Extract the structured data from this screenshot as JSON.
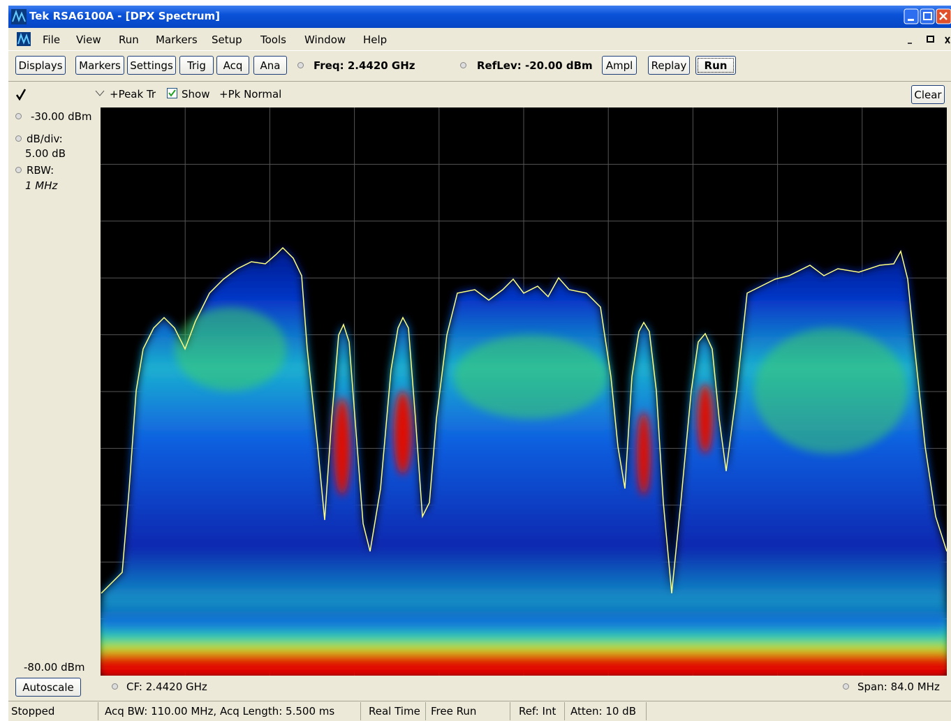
{
  "window": {
    "title": "Tek RSA6100A - [DPX Spectrum]"
  },
  "menu": [
    "File",
    "View",
    "Run",
    "Markers",
    "Setup",
    "Tools",
    "Window",
    "Help"
  ],
  "toolbar": {
    "buttons_left": [
      "Displays",
      "Markers",
      "Settings",
      "Trig",
      "Acq",
      "Ana"
    ],
    "freq": "Freq: 2.4420 GHz",
    "reflev": "RefLev: -20.00 dBm",
    "buttons_right": [
      "Ampl",
      "Replay",
      "Run"
    ]
  },
  "trace_bar": {
    "trace": "+Peak Tr",
    "show": "Show",
    "detection": "+Pk Normal",
    "clear": "Clear"
  },
  "side_panel": {
    "ref_level": "-30.00 dBm",
    "scale_label": "dB/div:",
    "scale_value": "5.00 dB",
    "rbw_label": "RBW:",
    "rbw_value": "1 MHz",
    "bottom_level": "-80.00 dBm",
    "autoscale": "Autoscale"
  },
  "plot_footer": {
    "cf": "CF: 2.4420 GHz",
    "span": "Span: 84.0 MHz"
  },
  "status_bar": [
    "Stopped",
    "Acq BW: 110.00 MHz, Acq Length: 5.500 ms",
    "Real Time",
    "Free Run",
    "Ref: Int",
    "Atten: 10 dB"
  ]
}
